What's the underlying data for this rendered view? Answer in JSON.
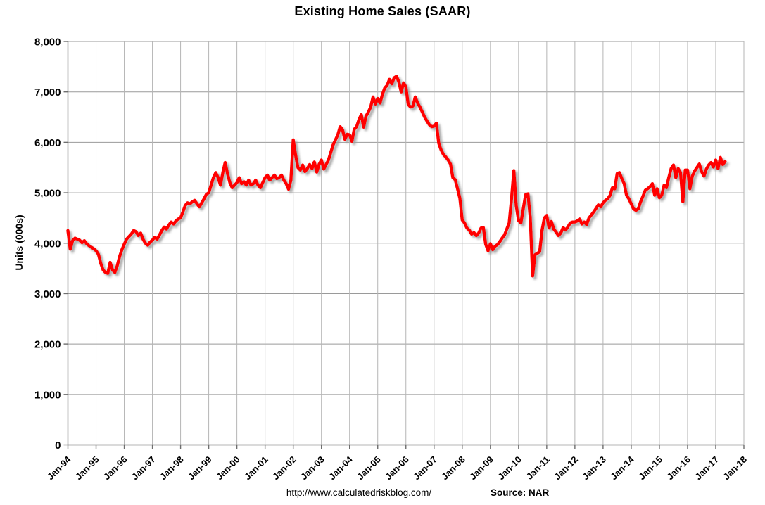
{
  "page": {
    "background": "#ffffff"
  },
  "footer": {
    "url": "http://www.calculatedriskblog.com/",
    "source": "Source: NAR"
  },
  "chart_data": {
    "type": "line",
    "title": "Existing Home Sales (SAAR)",
    "ylabel": "Units (000s)",
    "xlabel": "",
    "legend": "none",
    "grid": true,
    "ylim": [
      0,
      8000
    ],
    "y_tick_values": [
      0,
      1000,
      2000,
      3000,
      4000,
      5000,
      6000,
      7000,
      8000
    ],
    "y_tick_labels": [
      "0",
      "1,000",
      "2,000",
      "3,000",
      "4,000",
      "5,000",
      "6,000",
      "7,000",
      "8,000"
    ],
    "x_tick_labels": [
      "Jan-94",
      "Jan-95",
      "Jan-96",
      "Jan-97",
      "Jan-98",
      "Jan-99",
      "Jan-00",
      "Jan-01",
      "Jan-02",
      "Jan-03",
      "Jan-04",
      "Jan-05",
      "Jan-06",
      "Jan-07",
      "Jan-08",
      "Jan-09",
      "Jan-10",
      "Jan-11",
      "Jan-12",
      "Jan-13",
      "Jan-14",
      "Jan-15",
      "Jan-16",
      "Jan-17",
      "Jan-18"
    ],
    "colors": {
      "line": "#FF0000",
      "shadow": "#9e9e9e",
      "grid_h": "#9a9a9a",
      "grid_v": "#b5b5b5",
      "axis": "#6e6e6e"
    },
    "series": [
      {
        "name": "Existing Home Sales",
        "units": "thousands, seasonally adjusted annual rate",
        "frequency": "monthly",
        "start": "1994-01",
        "end": "2017-05",
        "color": "#FF0000",
        "values": [
          4250,
          3880,
          4050,
          4100,
          4080,
          4060,
          4010,
          4050,
          3990,
          3950,
          3920,
          3890,
          3850,
          3780,
          3600,
          3470,
          3420,
          3400,
          3620,
          3470,
          3420,
          3550,
          3730,
          3870,
          3980,
          4080,
          4130,
          4180,
          4250,
          4230,
          4150,
          4200,
          4080,
          4000,
          3960,
          4020,
          4060,
          4120,
          4080,
          4160,
          4250,
          4320,
          4280,
          4360,
          4420,
          4380,
          4440,
          4480,
          4500,
          4620,
          4750,
          4800,
          4780,
          4820,
          4850,
          4780,
          4720,
          4800,
          4880,
          4970,
          5000,
          5150,
          5300,
          5400,
          5300,
          5150,
          5400,
          5600,
          5380,
          5200,
          5100,
          5150,
          5200,
          5300,
          5180,
          5220,
          5150,
          5250,
          5150,
          5180,
          5250,
          5150,
          5100,
          5200,
          5300,
          5350,
          5250,
          5300,
          5350,
          5280,
          5300,
          5350,
          5250,
          5180,
          5070,
          5250,
          6050,
          5750,
          5500,
          5450,
          5550,
          5420,
          5480,
          5560,
          5480,
          5610,
          5410,
          5560,
          5650,
          5470,
          5560,
          5650,
          5800,
          5950,
          6050,
          6150,
          6310,
          6250,
          6060,
          6160,
          6150,
          6020,
          6260,
          6310,
          6450,
          6550,
          6300,
          6520,
          6600,
          6700,
          6900,
          6760,
          6870,
          6780,
          6950,
          7080,
          7130,
          7250,
          7160,
          7280,
          7310,
          7200,
          7000,
          7180,
          7100,
          6750,
          6700,
          6720,
          6900,
          6780,
          6700,
          6600,
          6500,
          6420,
          6350,
          6310,
          6320,
          6380,
          5980,
          5850,
          5760,
          5710,
          5650,
          5570,
          5300,
          5260,
          5080,
          4890,
          4460,
          4400,
          4300,
          4260,
          4180,
          4210,
          4150,
          4200,
          4300,
          4310,
          3980,
          3850,
          3990,
          3870,
          3940,
          3970,
          4030,
          4100,
          4160,
          4280,
          4400,
          4880,
          5440,
          4750,
          4450,
          4400,
          4680,
          4960,
          4980,
          4500,
          3350,
          3770,
          3800,
          3830,
          4250,
          4500,
          4550,
          4300,
          4430,
          4280,
          4220,
          4150,
          4200,
          4310,
          4260,
          4320,
          4400,
          4420,
          4420,
          4440,
          4480,
          4380,
          4420,
          4370,
          4500,
          4560,
          4620,
          4690,
          4760,
          4720,
          4800,
          4850,
          4880,
          4950,
          5100,
          5080,
          5380,
          5400,
          5280,
          5180,
          4950,
          4880,
          4780,
          4680,
          4650,
          4680,
          4820,
          4930,
          5050,
          5080,
          5120,
          5180,
          4950,
          5080,
          4900,
          4950,
          5150,
          5100,
          5300,
          5480,
          5550,
          5300,
          5480,
          5400,
          4820,
          5450,
          5450,
          5080,
          5330,
          5430,
          5500,
          5570,
          5420,
          5330,
          5470,
          5550,
          5600,
          5510,
          5650,
          5480,
          5700,
          5560,
          5620
        ]
      }
    ]
  }
}
